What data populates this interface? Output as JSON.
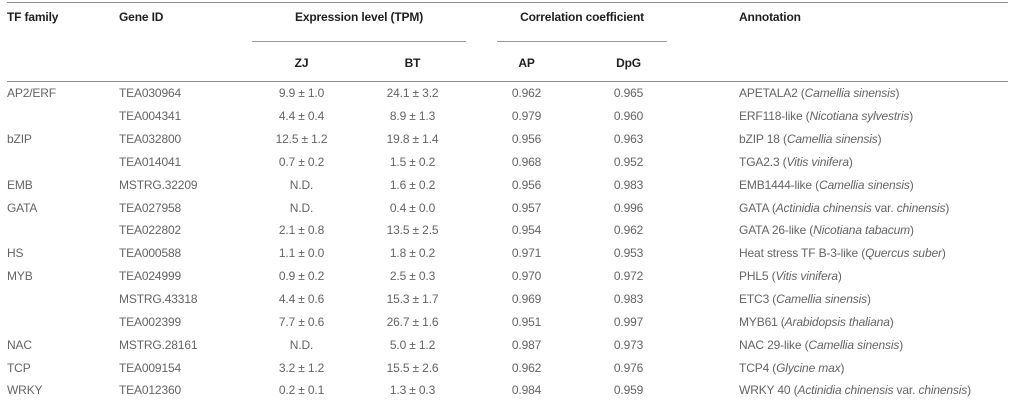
{
  "colors": {
    "header_text": "#1f1f1f",
    "body_text": "#646464",
    "rule_strong": "#8f8f8f",
    "rule_group": "#9b9b9b",
    "rule_bottom": "#a5a5a5",
    "background": "#ffffff"
  },
  "table": {
    "headers": {
      "tf_family": "TF family",
      "gene_id": "Gene ID",
      "expression_group": "Expression level (TPM)",
      "zj": "ZJ",
      "bt": "BT",
      "correlation_group": "Correlation coefficient",
      "ap": "AP",
      "dpg": "DpG",
      "annotation": "Annotation"
    },
    "rows": [
      {
        "tf_family": "AP2/ERF",
        "gene_id": "TEA030964",
        "zj": "9.9 ± 1.0",
        "bt": "24.1 ± 3.2",
        "ap": "0.962",
        "dpg": "0.965",
        "annotation": {
          "label": "APETALA2",
          "species": "Camellia sinensis"
        }
      },
      {
        "tf_family": "",
        "gene_id": "TEA004341",
        "zj": "4.4 ± 0.4",
        "bt": "8.9 ± 1.3",
        "ap": "0.979",
        "dpg": "0.960",
        "annotation": {
          "label": "ERF118-like",
          "species": "Nicotiana sylvestris"
        }
      },
      {
        "tf_family": "bZIP",
        "gene_id": "TEA032800",
        "zj": "12.5 ± 1.2",
        "bt": "19.8 ± 1.4",
        "ap": "0.956",
        "dpg": "0.963",
        "annotation": {
          "label": "bZIP 18",
          "species": "Camellia sinensis"
        }
      },
      {
        "tf_family": "",
        "gene_id": "TEA014041",
        "zj": "0.7 ± 0.2",
        "bt": "1.5 ± 0.2",
        "ap": "0.968",
        "dpg": "0.952",
        "annotation": {
          "label": "TGA2.3",
          "species": "Vitis vinifera"
        }
      },
      {
        "tf_family": "EMB",
        "gene_id": "MSTRG.32209",
        "zj": "N.D.",
        "bt": "1.6 ± 0.2",
        "ap": "0.956",
        "dpg": "0.983",
        "annotation": {
          "label": "EMB1444-like",
          "species": "Camellia sinensis"
        }
      },
      {
        "tf_family": "GATA",
        "gene_id": "TEA027958",
        "zj": "N.D.",
        "bt": "0.4 ± 0.0",
        "ap": "0.957",
        "dpg": "0.996",
        "annotation": {
          "label": "GATA",
          "species": "Actinidia chinensis var. chinensis"
        }
      },
      {
        "tf_family": "",
        "gene_id": "TEA022802",
        "zj": "2.1 ± 0.8",
        "bt": "13.5 ± 2.5",
        "ap": "0.954",
        "dpg": "0.962",
        "annotation": {
          "label": "GATA 26-like",
          "species": "Nicotiana tabacum"
        }
      },
      {
        "tf_family": "HS",
        "gene_id": "TEA000588",
        "zj": "1.1 ± 0.0",
        "bt": "1.8 ± 0.2",
        "ap": "0.971",
        "dpg": "0.953",
        "annotation": {
          "label": "Heat stress TF B-3-like",
          "species": "Quercus suber"
        }
      },
      {
        "tf_family": "MYB",
        "gene_id": "TEA024999",
        "zj": "0.9 ± 0.2",
        "bt": "2.5 ± 0.3",
        "ap": "0.970",
        "dpg": "0.972",
        "annotation": {
          "label": "PHL5",
          "species": "Vitis vinifera"
        }
      },
      {
        "tf_family": "",
        "gene_id": "MSTRG.43318",
        "zj": "4.4 ± 0.6",
        "bt": "15.3 ± 1.7",
        "ap": "0.969",
        "dpg": "0.983",
        "annotation": {
          "label": "ETC3",
          "species": "Camellia sinensis"
        }
      },
      {
        "tf_family": "",
        "gene_id": "TEA002399",
        "zj": "7.7 ± 0.6",
        "bt": "26.7 ± 1.6",
        "ap": "0.951",
        "dpg": "0.997",
        "annotation": {
          "label": "MYB61",
          "species": "Arabidopsis thaliana"
        }
      },
      {
        "tf_family": "NAC",
        "gene_id": "MSTRG.28161",
        "zj": "N.D.",
        "bt": "5.0 ± 1.2",
        "ap": "0.987",
        "dpg": "0.973",
        "annotation": {
          "label": "NAC 29-like",
          "species": "Camellia sinensis"
        }
      },
      {
        "tf_family": "TCP",
        "gene_id": "TEA009154",
        "zj": "3.2 ± 1.2",
        "bt": "15.5 ± 2.6",
        "ap": "0.962",
        "dpg": "0.976",
        "annotation": {
          "label": "TCP4",
          "species": "Glycine max"
        }
      },
      {
        "tf_family": "WRKY",
        "gene_id": "TEA012360",
        "zj": "0.2 ± 0.1",
        "bt": "1.3 ± 0.3",
        "ap": "0.984",
        "dpg": "0.959",
        "annotation": {
          "label": "WRKY 40",
          "species": "Actinidia chinensis var. chinensis"
        }
      }
    ]
  }
}
